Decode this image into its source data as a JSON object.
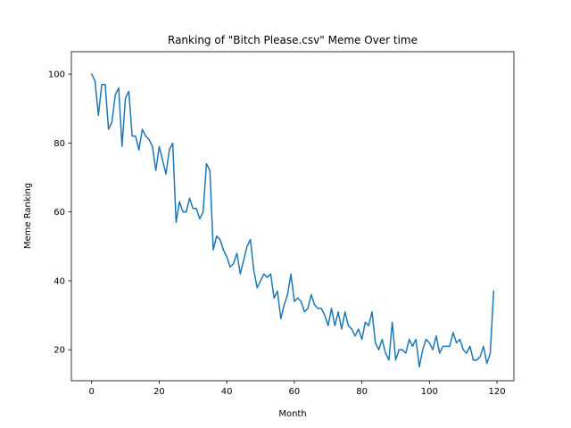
{
  "chart_data": {
    "type": "line",
    "title": "Ranking of \"Bitch Please.csv\" Meme Over time",
    "xlabel": "Month",
    "ylabel": "Meme Ranking",
    "xlim": [
      -6,
      125
    ],
    "ylim": [
      11,
      106.5
    ],
    "xticks": [
      0,
      20,
      40,
      60,
      80,
      100,
      120
    ],
    "yticks": [
      20,
      40,
      60,
      80,
      100
    ],
    "grid": false,
    "line_color": "#1f77b4",
    "series": [
      {
        "x": [
          0,
          1,
          2,
          3,
          4,
          5,
          6,
          7,
          8,
          9,
          10,
          11,
          12,
          13,
          14,
          15,
          16,
          17,
          18,
          19,
          20,
          21,
          22,
          23,
          24,
          25,
          26,
          27,
          28,
          29,
          30,
          31,
          32,
          33,
          34,
          35,
          36,
          37,
          38,
          39,
          40,
          41,
          42,
          43,
          44,
          45,
          46,
          47,
          48,
          49,
          50,
          51,
          52,
          53,
          54,
          55,
          56,
          57,
          58,
          59,
          60,
          61,
          62,
          63,
          64,
          65,
          66,
          67,
          68,
          69,
          70,
          71,
          72,
          73,
          74,
          75,
          76,
          77,
          78,
          79,
          80,
          81,
          82,
          83,
          84,
          85,
          86,
          87,
          88,
          89,
          90,
          91,
          92,
          93,
          94,
          95,
          96,
          97,
          98,
          99,
          100,
          101,
          102,
          103,
          104,
          105,
          106,
          107,
          108,
          109,
          110,
          111,
          112,
          113,
          114,
          115,
          116,
          117,
          118,
          119
        ],
        "values": [
          100,
          98,
          88,
          97,
          97,
          84,
          86,
          94,
          96,
          79,
          93,
          95,
          82,
          82,
          78,
          84,
          82,
          81,
          79,
          72,
          79,
          75,
          71,
          78,
          80,
          57,
          63,
          60,
          60,
          64,
          61,
          61,
          58,
          60,
          74,
          72,
          49,
          53,
          52,
          49,
          47,
          44,
          45,
          48,
          42,
          46,
          50,
          52,
          43,
          38,
          40,
          42,
          41,
          42,
          35,
          37,
          29,
          33,
          36,
          42,
          34,
          35,
          34,
          31,
          32,
          36,
          33,
          32,
          32,
          30,
          27,
          32,
          27,
          31,
          26,
          31,
          27,
          26,
          24,
          26,
          23,
          28,
          27,
          31,
          22,
          20,
          23,
          19,
          17,
          28,
          17,
          20,
          20,
          19,
          23,
          21,
          23,
          15,
          20,
          23,
          22,
          20,
          24,
          19,
          21,
          21,
          21,
          25,
          22,
          23,
          20,
          19,
          21,
          17,
          17,
          18,
          21,
          16,
          19,
          37
        ]
      }
    ]
  }
}
